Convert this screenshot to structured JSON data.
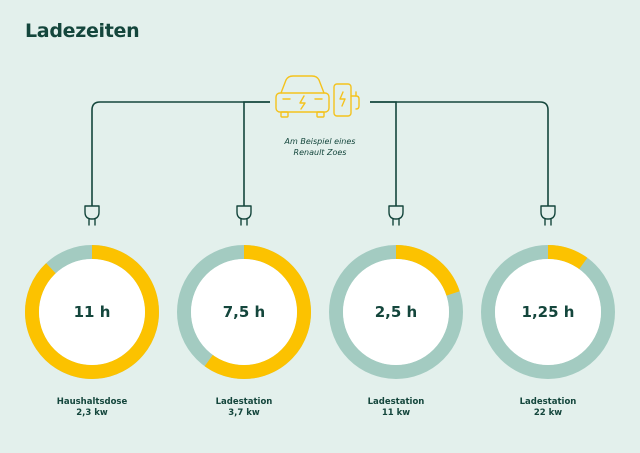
{
  "title": "Ladezeiten",
  "note": {
    "line1": "Am Beispiel eines",
    "line2": "Renault Zoes"
  },
  "colors": {
    "line": "#14463c",
    "charged": "#fcc200",
    "remaining": "#a3cbc1",
    "icon": "#f4c21c",
    "background": "#e3f0ec"
  },
  "icons": {
    "car": "car-icon",
    "charger": "charging-station-icon",
    "plug": "plug-icon"
  },
  "chart_data": {
    "type": "donut",
    "max_hours": 12.5,
    "items": [
      {
        "value_label": "11 h",
        "hours": 11,
        "label_line1": "Haushaltsdose",
        "label_line2": "2,3 kw"
      },
      {
        "value_label": "7,5 h",
        "hours": 7.5,
        "label_line1": "Ladestation",
        "label_line2": "3,7 kw"
      },
      {
        "value_label": "2,5 h",
        "hours": 2.5,
        "label_line1": "Ladestation",
        "label_line2": "11 kw"
      },
      {
        "value_label": "1,25 h",
        "hours": 1.25,
        "label_line1": "Ladestation",
        "label_line2": "22 kw"
      }
    ]
  }
}
